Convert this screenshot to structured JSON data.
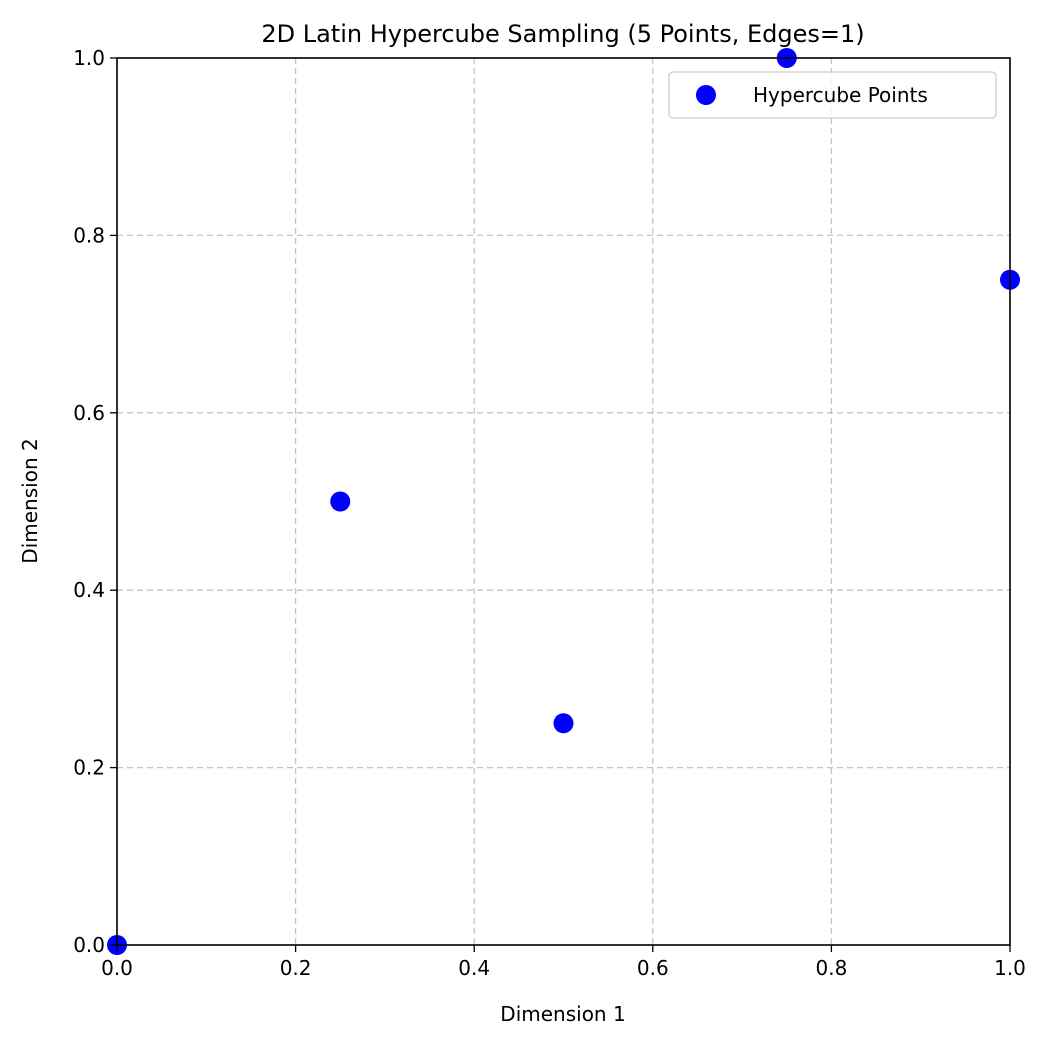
{
  "chart_data": {
    "type": "scatter",
    "title": "2D Latin Hypercube Sampling (5 Points, Edges=1)",
    "xlabel": "Dimension 1",
    "ylabel": "Dimension 2",
    "xlim": [
      0.0,
      1.0
    ],
    "ylim": [
      0.0,
      1.0
    ],
    "xticks": [
      "0.0",
      "0.2",
      "0.4",
      "0.6",
      "0.8",
      "1.0"
    ],
    "yticks": [
      "0.0",
      "0.2",
      "0.4",
      "0.6",
      "0.8",
      "1.0"
    ],
    "grid": true,
    "legend_position": "top-right",
    "series": [
      {
        "name": "Hypercube Points",
        "color": "#0000ff",
        "x": [
          0.0,
          0.25,
          0.5,
          0.75,
          1.0
        ],
        "y": [
          0.0,
          0.5,
          0.25,
          1.0,
          0.75
        ]
      }
    ]
  }
}
